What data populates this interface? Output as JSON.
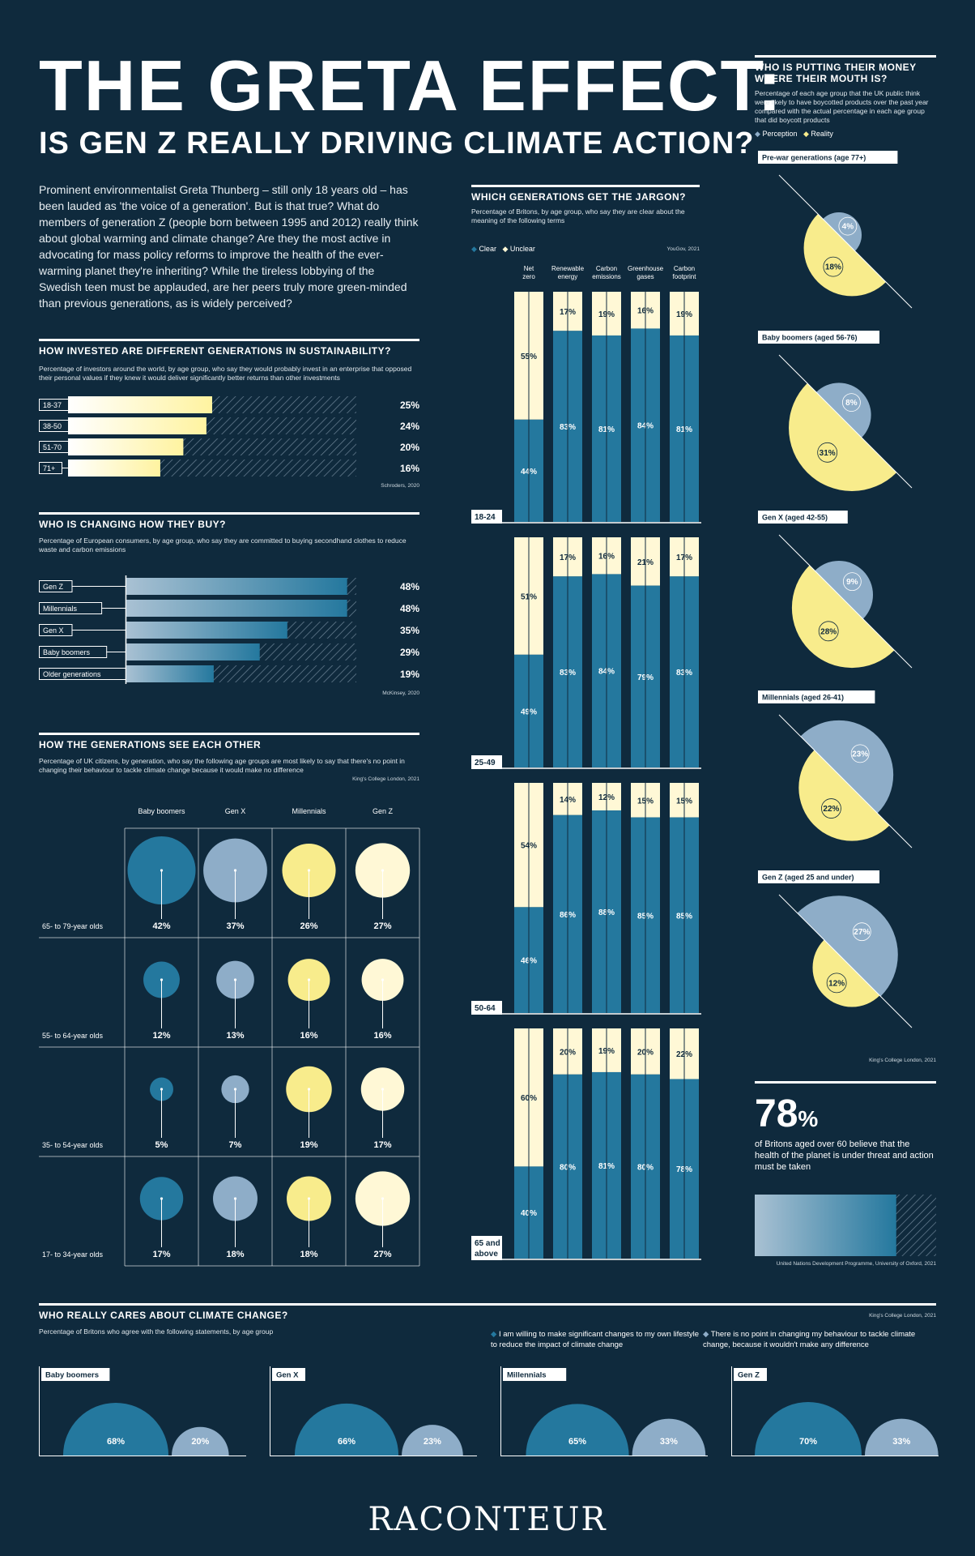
{
  "header": {
    "title": "THE GRETA EFFECT:",
    "subtitle": "IS GEN Z REALLY DRIVING CLIMATE ACTION?",
    "intro": "Prominent environmentalist Greta Thunberg – still only 18 years old – has been lauded as 'the voice of a generation'. But is that true? What do members of generation Z (people born between 1995 and 2012) really think about global warming and climate change? Are they the most active in advocating for mass policy reforms to improve the health of the ever-warming planet they're inheriting? While the tireless lobbying of the Swedish teen must be applauded, are her peers truly more green-minded than previous generations, as is widely perceived?"
  },
  "colors": {
    "background": "#0f2a3d",
    "blue": "#24789e",
    "lightblue": "#8eadc8",
    "yellow": "#f8ec8c",
    "cream": "#fff8d6"
  },
  "invested": {
    "title": "HOW INVESTED ARE DIFFERENT GENERATIONS IN SUSTAINABILITY?",
    "subtitle": "Percentage of investors around the world, by age group, who say they would probably invest in an enterprise that opposed their personal values if they knew it would deliver significantly better returns than other investments",
    "source": "Schroders, 2020"
  },
  "buying": {
    "title": "WHO IS CHANGING HOW THEY BUY?",
    "subtitle": "Percentage of European consumers, by age group, who say they are committed to buying secondhand clothes to reduce waste and carbon emissions",
    "source": "McKinsey, 2020"
  },
  "seeEachOther": {
    "title": "HOW THE GENERATIONS SEE EACH OTHER",
    "subtitle": "Percentage of UK citizens, by generation, who say the following age groups are most likely to say that there's no point in changing their behaviour to tackle climate change because it would make no difference",
    "source": "King's College London, 2021"
  },
  "jargon": {
    "title": "WHICH GENERATIONS GET THE JARGON?",
    "subtitle": "Percentage of Britons, by age group, who say they are clear about the meaning of the following terms",
    "source": "YouGov, 2021",
    "legend_clear": "Clear",
    "legend_unclear": "Unclear"
  },
  "money": {
    "title": "WHO IS PUTTING THEIR MONEY WHERE THEIR MOUTH IS?",
    "subtitle": "Percentage of each age group that the UK public think were likely to have boycotted products over the past year compared with the actual percentage in each age group that did boycott products",
    "legend_perception": "Perception",
    "legend_reality": "Reality",
    "source": "King's College London, 2021"
  },
  "stat": {
    "value": "78",
    "unit": "%",
    "text": "of Britons aged over 60 believe that the health of the planet is under threat and action must be taken",
    "source": "United Nations Development Programme, University of Oxford, 2021",
    "share": 0.78
  },
  "cares": {
    "title": "WHO REALLY CARES ABOUT CLIMATE CHANGE?",
    "subtitle": "Percentage of Britons who agree with the following statements, by age group",
    "source": "King's College London, 2021",
    "legend_a": "I am willing to make significant changes to my own lifestyle to reduce the impact of climate change",
    "legend_b": "There is no point in changing my behaviour to tackle climate change, because it wouldn't make any difference"
  },
  "footer": {
    "brand": "RACONTEUR"
  },
  "chart_data": [
    {
      "id": "invested",
      "type": "bar",
      "categories": [
        "18-37",
        "38-50",
        "51-70",
        "71+"
      ],
      "values": [
        25,
        24,
        20,
        16
      ],
      "labels": [
        "25%",
        "24%",
        "20%",
        "16%"
      ]
    },
    {
      "id": "buying",
      "type": "bar",
      "categories": [
        "Gen Z",
        "Millennials",
        "Gen X",
        "Baby boomers",
        "Older generations"
      ],
      "values": [
        48,
        48,
        35,
        29,
        19
      ],
      "labels": [
        "48%",
        "48%",
        "35%",
        "29%",
        "19%"
      ]
    },
    {
      "id": "seeEachOther",
      "type": "scatter",
      "columns": [
        "Baby boomers",
        "Gen X",
        "Millennials",
        "Gen Z"
      ],
      "rows": [
        {
          "label": "65- to 79-year olds",
          "values": [
            42,
            37,
            26,
            27
          ],
          "labels": [
            "42%",
            "37%",
            "26%",
            "27%"
          ]
        },
        {
          "label": "55- to 64-year olds",
          "values": [
            12,
            13,
            16,
            16
          ],
          "labels": [
            "12%",
            "13%",
            "16%",
            "16%"
          ]
        },
        {
          "label": "35- to 54-year olds",
          "values": [
            5,
            7,
            19,
            17
          ],
          "labels": [
            "5%",
            "7%",
            "19%",
            "17%"
          ]
        },
        {
          "label": "17- to 34-year olds",
          "values": [
            17,
            18,
            18,
            27
          ],
          "labels": [
            "17%",
            "18%",
            "18%",
            "27%"
          ]
        }
      ]
    },
    {
      "id": "jargon",
      "type": "bar",
      "terms": [
        "Net zero",
        "Renewable energy",
        "Carbon emissions",
        "Greenhouse gases",
        "Carbon footprint"
      ],
      "groups": [
        {
          "label": "18-24",
          "clear": [
            44,
            83,
            81,
            84,
            81
          ],
          "unclear": [
            55,
            17,
            19,
            16,
            19
          ],
          "clear_labels": [
            "44%",
            "83%",
            "81%",
            "84%",
            "81%"
          ],
          "unclear_labels": [
            "55%",
            "17%",
            "19%",
            "16%",
            "19%"
          ]
        },
        {
          "label": "25-49",
          "clear": [
            49,
            83,
            84,
            79,
            83
          ],
          "unclear": [
            51,
            17,
            16,
            21,
            17
          ],
          "clear_labels": [
            "49%",
            "83%",
            "84%",
            "79%",
            "83%"
          ],
          "unclear_labels": [
            "51%",
            "17%",
            "16%",
            "21%",
            "17%"
          ]
        },
        {
          "label": "50-64",
          "clear": [
            46,
            86,
            88,
            85,
            85
          ],
          "unclear": [
            54,
            14,
            12,
            15,
            15
          ],
          "clear_labels": [
            "46%",
            "86%",
            "88%",
            "85%",
            "85%"
          ],
          "unclear_labels": [
            "54%",
            "14%",
            "12%",
            "15%",
            "15%"
          ]
        },
        {
          "label": "65 and above",
          "clear": [
            40,
            80,
            81,
            80,
            78
          ],
          "unclear": [
            60,
            20,
            19,
            20,
            22
          ],
          "clear_labels": [
            "40%",
            "80%",
            "81%",
            "80%",
            "78%"
          ],
          "unclear_labels": [
            "60%",
            "20%",
            "19%",
            "20%",
            "22%"
          ]
        }
      ]
    },
    {
      "id": "money",
      "type": "pie",
      "groups": [
        {
          "label": "Pre-war generations (age 77+)",
          "perception": 4,
          "reality": 18,
          "perception_label": "4%",
          "reality_label": "18%"
        },
        {
          "label": "Baby boomers (aged 56-76)",
          "perception": 8,
          "reality": 31,
          "perception_label": "8%",
          "reality_label": "31%"
        },
        {
          "label": "Gen X (aged 42-55)",
          "perception": 9,
          "reality": 28,
          "perception_label": "9%",
          "reality_label": "28%"
        },
        {
          "label": "Millennials (aged 26-41)",
          "perception": 23,
          "reality": 22,
          "perception_label": "23%",
          "reality_label": "22%"
        },
        {
          "label": "Gen Z (aged 25 and under)",
          "perception": 27,
          "reality": 12,
          "perception_label": "27%",
          "reality_label": "12%"
        }
      ]
    },
    {
      "id": "cares",
      "type": "area",
      "groups": [
        {
          "label": "Baby boomers",
          "willing": 68,
          "no_point": 20,
          "willing_label": "68%",
          "no_point_label": "20%"
        },
        {
          "label": "Gen X",
          "willing": 66,
          "no_point": 23,
          "willing_label": "66%",
          "no_point_label": "23%"
        },
        {
          "label": "Millennials",
          "willing": 65,
          "no_point": 33,
          "willing_label": "65%",
          "no_point_label": "33%"
        },
        {
          "label": "Gen Z",
          "willing": 70,
          "no_point": 33,
          "willing_label": "70%",
          "no_point_label": "33%"
        }
      ]
    }
  ]
}
